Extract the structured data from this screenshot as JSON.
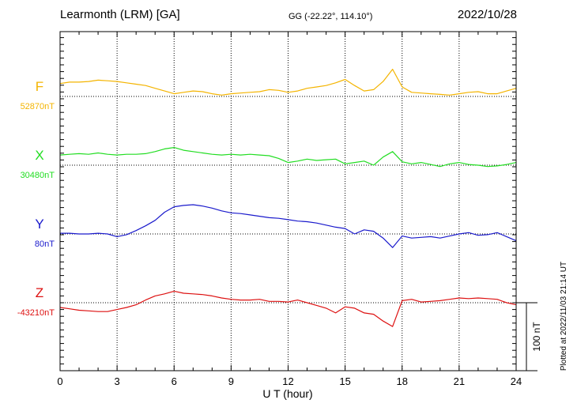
{
  "header": {
    "station": "Learmonth (LRM)  [GA]",
    "coords": "GG (-22.22°, 114.10°)",
    "date": "2022/10/28"
  },
  "footer": {
    "plotted": "Plotted at 2022/11/03 21:14 UT",
    "scale_label": "100 nT"
  },
  "colors": {
    "F": "#f4b400",
    "X": "#22dd22",
    "Y": "#1a1acc",
    "Z": "#dd1111"
  },
  "chart_data": {
    "type": "line",
    "xlabel": "U T (hour)",
    "xlim": [
      0,
      24
    ],
    "xticks": [
      0,
      3,
      6,
      9,
      12,
      15,
      18,
      21,
      24
    ],
    "scale_nT": 100,
    "series": [
      {
        "name": "F",
        "baseline_label": "52870nT",
        "baseline": 52870,
        "x": [
          0,
          0.5,
          1,
          1.5,
          2,
          2.5,
          3,
          3.5,
          4,
          4.5,
          5,
          5.5,
          6,
          6.5,
          7,
          7.5,
          8,
          8.5,
          9,
          9.5,
          10,
          10.5,
          11,
          11.5,
          12,
          12.5,
          13,
          13.5,
          14,
          14.5,
          15,
          15.5,
          16,
          16.5,
          17,
          17.5,
          18,
          18.5,
          19,
          19.5,
          20,
          20.5,
          21,
          21.5,
          22,
          22.5,
          23,
          23.5,
          24
        ],
        "values": [
          52889,
          52891,
          52891,
          52892,
          52894,
          52893,
          52892,
          52890,
          52888,
          52886,
          52882,
          52878,
          52874,
          52876,
          52878,
          52877,
          52874,
          52872,
          52874,
          52875,
          52876,
          52877,
          52880,
          52879,
          52876,
          52878,
          52882,
          52884,
          52886,
          52890,
          52895,
          52886,
          52878,
          52880,
          52892,
          52910,
          52884,
          52876,
          52875,
          52874,
          52873,
          52872,
          52874,
          52876,
          52877,
          52874,
          52874,
          52878,
          52882
        ]
      },
      {
        "name": "X",
        "baseline_label": "30480nT",
        "baseline": 30480,
        "x": [
          0,
          0.5,
          1,
          1.5,
          2,
          2.5,
          3,
          3.5,
          4,
          4.5,
          5,
          5.5,
          6,
          6.5,
          7,
          7.5,
          8,
          8.5,
          9,
          9.5,
          10,
          10.5,
          11,
          11.5,
          12,
          12.5,
          13,
          13.5,
          14,
          14.5,
          15,
          15.5,
          16,
          16.5,
          17,
          17.5,
          18,
          18.5,
          19,
          19.5,
          20,
          20.5,
          21,
          21.5,
          22,
          22.5,
          23,
          23.5,
          24
        ],
        "values": [
          30495,
          30496,
          30497,
          30496,
          30498,
          30496,
          30495,
          30496,
          30496,
          30497,
          30500,
          30504,
          30506,
          30502,
          30500,
          30498,
          30496,
          30495,
          30496,
          30495,
          30496,
          30495,
          30494,
          30490,
          30484,
          30486,
          30489,
          30487,
          30488,
          30489,
          30482,
          30484,
          30486,
          30480,
          30492,
          30500,
          30485,
          30482,
          30484,
          30481,
          30478,
          30482,
          30484,
          30481,
          30480,
          30478,
          30479,
          30481,
          30484
        ]
      },
      {
        "name": "Y",
        "baseline_label": "80nT",
        "baseline": 80,
        "x": [
          0,
          0.5,
          1,
          1.5,
          2,
          2.5,
          3,
          3.5,
          4,
          4.5,
          5,
          5.5,
          6,
          6.5,
          7,
          7.5,
          8,
          8.5,
          9,
          9.5,
          10,
          10.5,
          11,
          11.5,
          12,
          12.5,
          13,
          13.5,
          14,
          14.5,
          15,
          15.5,
          16,
          16.5,
          17,
          17.5,
          18,
          18.5,
          19,
          19.5,
          20,
          20.5,
          21,
          21.5,
          22,
          22.5,
          23,
          23.5,
          24
        ],
        "values": [
          81,
          81,
          80,
          80,
          81,
          80,
          76,
          79,
          85,
          92,
          100,
          112,
          120,
          122,
          123,
          121,
          118,
          114,
          111,
          110,
          108,
          106,
          104,
          103,
          101,
          99,
          98,
          96,
          93,
          90,
          88,
          80,
          86,
          84,
          74,
          60,
          77,
          74,
          75,
          76,
          74,
          77,
          80,
          82,
          78,
          79,
          82,
          76,
          70
        ]
      },
      {
        "name": "Z",
        "baseline_label": "-43210nT",
        "baseline": -43210,
        "x": [
          0,
          0.5,
          1,
          1.5,
          2,
          2.5,
          3,
          3.5,
          4,
          4.5,
          5,
          5.5,
          6,
          6.5,
          7,
          7.5,
          8,
          8.5,
          9,
          9.5,
          10,
          10.5,
          11,
          11.5,
          12,
          12.5,
          13,
          13.5,
          14,
          14.5,
          15,
          15.5,
          16,
          16.5,
          17,
          17.5,
          18,
          18.5,
          19,
          19.5,
          20,
          20.5,
          21,
          21.5,
          22,
          22.5,
          23,
          23.5,
          24
        ],
        "values": [
          -43217,
          -43219,
          -43221,
          -43222,
          -43223,
          -43223,
          -43220,
          -43217,
          -43213,
          -43206,
          -43200,
          -43197,
          -43193,
          -43196,
          -43197,
          -43198,
          -43200,
          -43203,
          -43205,
          -43206,
          -43206,
          -43205,
          -43208,
          -43208,
          -43209,
          -43206,
          -43210,
          -43214,
          -43218,
          -43225,
          -43216,
          -43218,
          -43225,
          -43227,
          -43237,
          -43245,
          -43207,
          -43205,
          -43209,
          -43208,
          -43207,
          -43205,
          -43203,
          -43204,
          -43203,
          -43204,
          -43205,
          -43210,
          -43213
        ]
      }
    ]
  }
}
